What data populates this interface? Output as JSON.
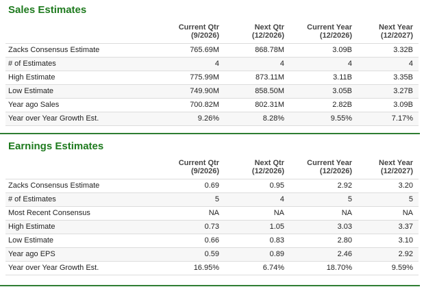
{
  "sales": {
    "title": "Sales Estimates",
    "headers": [
      {
        "line1": "Current Qtr",
        "line2": "(9/2026)"
      },
      {
        "line1": "Next Qtr",
        "line2": "(12/2026)"
      },
      {
        "line1": "Current Year",
        "line2": "(12/2026)"
      },
      {
        "line1": "Next Year",
        "line2": "(12/2027)"
      }
    ],
    "rows": [
      {
        "label": "Zacks Consensus Estimate",
        "values": [
          "765.69M",
          "868.78M",
          "3.09B",
          "3.32B"
        ]
      },
      {
        "label": "# of Estimates",
        "values": [
          "4",
          "4",
          "4",
          "4"
        ]
      },
      {
        "label": "High Estimate",
        "values": [
          "775.99M",
          "873.11M",
          "3.11B",
          "3.35B"
        ]
      },
      {
        "label": "Low Estimate",
        "values": [
          "749.90M",
          "858.50M",
          "3.05B",
          "3.27B"
        ]
      },
      {
        "label": "Year ago Sales",
        "values": [
          "700.82M",
          "802.31M",
          "2.82B",
          "3.09B"
        ]
      },
      {
        "label": "Year over Year Growth Est.",
        "values": [
          "9.26%",
          "8.28%",
          "9.55%",
          "7.17%"
        ]
      }
    ]
  },
  "earnings": {
    "title": "Earnings Estimates",
    "headers": [
      {
        "line1": "Current Qtr",
        "line2": "(9/2026)"
      },
      {
        "line1": "Next Qtr",
        "line2": "(12/2026)"
      },
      {
        "line1": "Current Year",
        "line2": "(12/2026)"
      },
      {
        "line1": "Next Year",
        "line2": "(12/2027)"
      }
    ],
    "rows": [
      {
        "label": "Zacks Consensus Estimate",
        "values": [
          "0.69",
          "0.95",
          "2.92",
          "3.20"
        ]
      },
      {
        "label": "# of Estimates",
        "values": [
          "5",
          "4",
          "5",
          "5"
        ]
      },
      {
        "label": "Most Recent Consensus",
        "values": [
          "NA",
          "NA",
          "NA",
          "NA"
        ]
      },
      {
        "label": "High Estimate",
        "values": [
          "0.73",
          "1.05",
          "3.03",
          "3.37"
        ]
      },
      {
        "label": "Low Estimate",
        "values": [
          "0.66",
          "0.83",
          "2.80",
          "3.10"
        ]
      },
      {
        "label": "Year ago EPS",
        "values": [
          "0.59",
          "0.89",
          "2.46",
          "2.92"
        ]
      },
      {
        "label": "Year over Year Growth Est.",
        "values": [
          "16.95%",
          "6.74%",
          "18.70%",
          "9.59%"
        ]
      }
    ]
  },
  "colors": {
    "title_green": "#1e7a1e",
    "divider_green": "#2e7d32",
    "row_border": "#dcdcdc"
  }
}
